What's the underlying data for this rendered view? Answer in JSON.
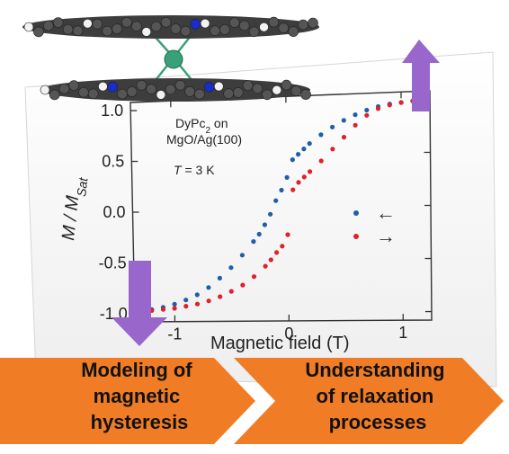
{
  "chart_data": {
    "type": "scatter",
    "annotation": {
      "line1": "DyPc",
      "line1_sub": "2",
      "line1_suffix": " on",
      "line2": "MgO/Ag(100)",
      "temp_var": "T",
      "temp_rest": " = 3 K"
    },
    "ylabel": {
      "main": "M / M",
      "sub": "Sat"
    },
    "xlabel": "Magnetic field (T)",
    "xlim": [
      -1.35,
      1.25
    ],
    "ylim": [
      -1.08,
      1.08
    ],
    "x_ticks": [
      {
        "value": -1,
        "label": "-1"
      },
      {
        "value": 0,
        "label": "0"
      },
      {
        "value": 1,
        "label": "1"
      }
    ],
    "y_ticks": [
      {
        "value": 1.0,
        "label": "1.0"
      },
      {
        "value": 0.5,
        "label": "0.5"
      },
      {
        "value": 0.0,
        "label": "0.0"
      },
      {
        "value": -0.5,
        "label": "-0.5"
      },
      {
        "value": -1.0,
        "label": "-1.0"
      }
    ],
    "legend_placement": "right",
    "series": [
      {
        "name": "←",
        "color": "#1f5fa8",
        "sweep": "down",
        "x": [
          1.2,
          1.1,
          1.0,
          0.9,
          0.8,
          0.7,
          0.6,
          0.5,
          0.4,
          0.3,
          0.2,
          0.15,
          0.1,
          0.05,
          0.0,
          -0.05,
          -0.1,
          -0.15,
          -0.2,
          -0.25,
          -0.3,
          -0.4,
          -0.5,
          -0.6,
          -0.7,
          -0.8,
          -0.9,
          -1.0,
          -1.1,
          -1.2,
          -1.3
        ],
        "y": [
          1.0,
          0.99,
          0.98,
          0.97,
          0.95,
          0.92,
          0.88,
          0.83,
          0.77,
          0.7,
          0.62,
          0.57,
          0.52,
          0.47,
          0.3,
          0.18,
          0.08,
          -0.05,
          -0.15,
          -0.24,
          -0.31,
          -0.44,
          -0.56,
          -0.66,
          -0.75,
          -0.82,
          -0.87,
          -0.91,
          -0.94,
          -0.96,
          -0.97
        ]
      },
      {
        "name": "→",
        "color": "#e0202a",
        "sweep": "up",
        "x": [
          -1.3,
          -1.2,
          -1.1,
          -1.0,
          -0.9,
          -0.8,
          -0.7,
          -0.6,
          -0.5,
          -0.4,
          -0.3,
          -0.2,
          -0.15,
          -0.1,
          -0.05,
          0.0,
          0.05,
          0.1,
          0.15,
          0.2,
          0.3,
          0.4,
          0.5,
          0.6,
          0.7,
          0.8,
          0.9,
          1.0,
          1.1,
          1.2
        ],
        "y": [
          -0.97,
          -0.97,
          -0.96,
          -0.95,
          -0.93,
          -0.91,
          -0.88,
          -0.84,
          -0.79,
          -0.73,
          -0.65,
          -0.55,
          -0.49,
          -0.42,
          -0.36,
          -0.25,
          0.18,
          0.25,
          0.3,
          0.35,
          0.45,
          0.56,
          0.67,
          0.78,
          0.87,
          0.93,
          0.96,
          0.98,
          0.99,
          1.0
        ]
      }
    ]
  },
  "banner": {
    "left_lines": [
      "Modeling of",
      "magnetic",
      "hysteresis"
    ],
    "right_lines": [
      "Understanding",
      "of relaxation",
      "processes"
    ],
    "color": "#f07d26"
  },
  "arrows": {
    "up": "magnetization-up-arrow",
    "down": "magnetization-down-arrow",
    "color": "#9966cc"
  },
  "molecule": {
    "name": "DyPc2 molecular structure",
    "metal_color": "#3aa07a",
    "ring_color": "#555555",
    "nitrogen_color": "#1a2ccc",
    "hydrogen_color": "#f2f2f2"
  }
}
